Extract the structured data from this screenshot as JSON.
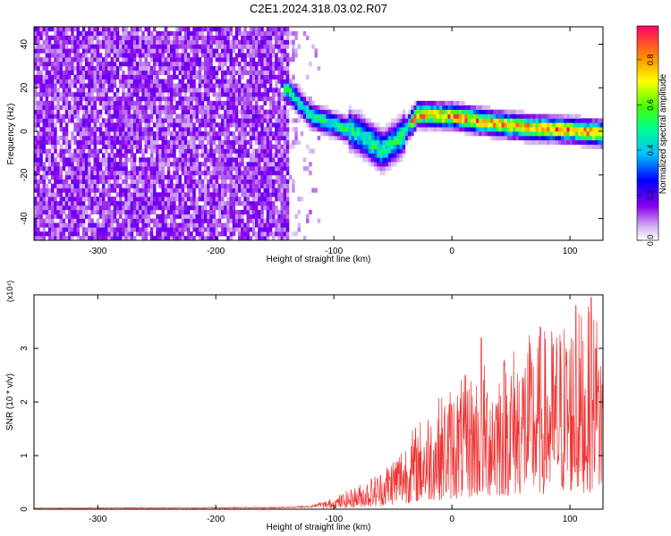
{
  "title": "C2E1.2024.318.03.02.R07",
  "colors": {
    "snr_line": "#ee3333",
    "axis": "#000000"
  },
  "chart_data": [
    {
      "type": "heatmap",
      "xlabel": "Height of straight line (km)",
      "ylabel": "Frequency (Hz)",
      "xlim": [
        -354,
        128
      ],
      "ylim": [
        -50,
        48
      ],
      "x_ticks": [
        -300,
        -200,
        -100,
        0,
        100
      ],
      "y_ticks": [
        -40,
        -20,
        0,
        20,
        40
      ],
      "colorbar": {
        "label": "Normalized spectral amplitude",
        "range": [
          0,
          0.95
        ],
        "ticks": [
          0.0,
          0.2,
          0.4,
          0.6,
          0.8
        ],
        "colormap": "rainbow"
      },
      "features": {
        "noise_region_x": [
          -354,
          -140
        ],
        "trace": [
          {
            "x": -140,
            "y": 18
          },
          {
            "x": -120,
            "y": 6
          },
          {
            "x": -100,
            "y": 2
          },
          {
            "x": -80,
            "y": -2
          },
          {
            "x": -60,
            "y": -10
          },
          {
            "x": -45,
            "y": -4
          },
          {
            "x": -30,
            "y": 7
          },
          {
            "x": 0,
            "y": 6
          },
          {
            "x": 30,
            "y": 3
          },
          {
            "x": 60,
            "y": 1
          },
          {
            "x": 90,
            "y": 0
          },
          {
            "x": 128,
            "y": -2
          }
        ]
      }
    },
    {
      "type": "line",
      "xlabel": "Height of straight line (km)",
      "ylabel": "SNR (10 * v/v)",
      "multiplier": "(x10⁴)",
      "xlim": [
        -354,
        128
      ],
      "ylim": [
        0,
        4
      ],
      "x_ticks": [
        -300,
        -200,
        -100,
        0,
        100
      ],
      "y_ticks": [
        0,
        1,
        2,
        3
      ],
      "envelope": [
        {
          "x": -354,
          "y": 0.02
        },
        {
          "x": -150,
          "y": 0.03
        },
        {
          "x": -120,
          "y": 0.05
        },
        {
          "x": -100,
          "y": 0.15
        },
        {
          "x": -80,
          "y": 0.3
        },
        {
          "x": -60,
          "y": 0.5
        },
        {
          "x": -40,
          "y": 0.9
        },
        {
          "x": -20,
          "y": 1.3
        },
        {
          "x": 0,
          "y": 1.6
        },
        {
          "x": 20,
          "y": 1.8
        },
        {
          "x": 40,
          "y": 2.0
        },
        {
          "x": 60,
          "y": 2.2
        },
        {
          "x": 80,
          "y": 2.3
        },
        {
          "x": 100,
          "y": 2.5
        },
        {
          "x": 120,
          "y": 2.6
        },
        {
          "x": 128,
          "y": 2.4
        }
      ],
      "peaks": [
        {
          "x": 25,
          "y": 3.2
        },
        {
          "x": 75,
          "y": 3.4
        },
        {
          "x": 105,
          "y": 3.8
        },
        {
          "x": 118,
          "y": 3.95
        },
        {
          "x": 122,
          "y": 3.0
        }
      ]
    }
  ]
}
